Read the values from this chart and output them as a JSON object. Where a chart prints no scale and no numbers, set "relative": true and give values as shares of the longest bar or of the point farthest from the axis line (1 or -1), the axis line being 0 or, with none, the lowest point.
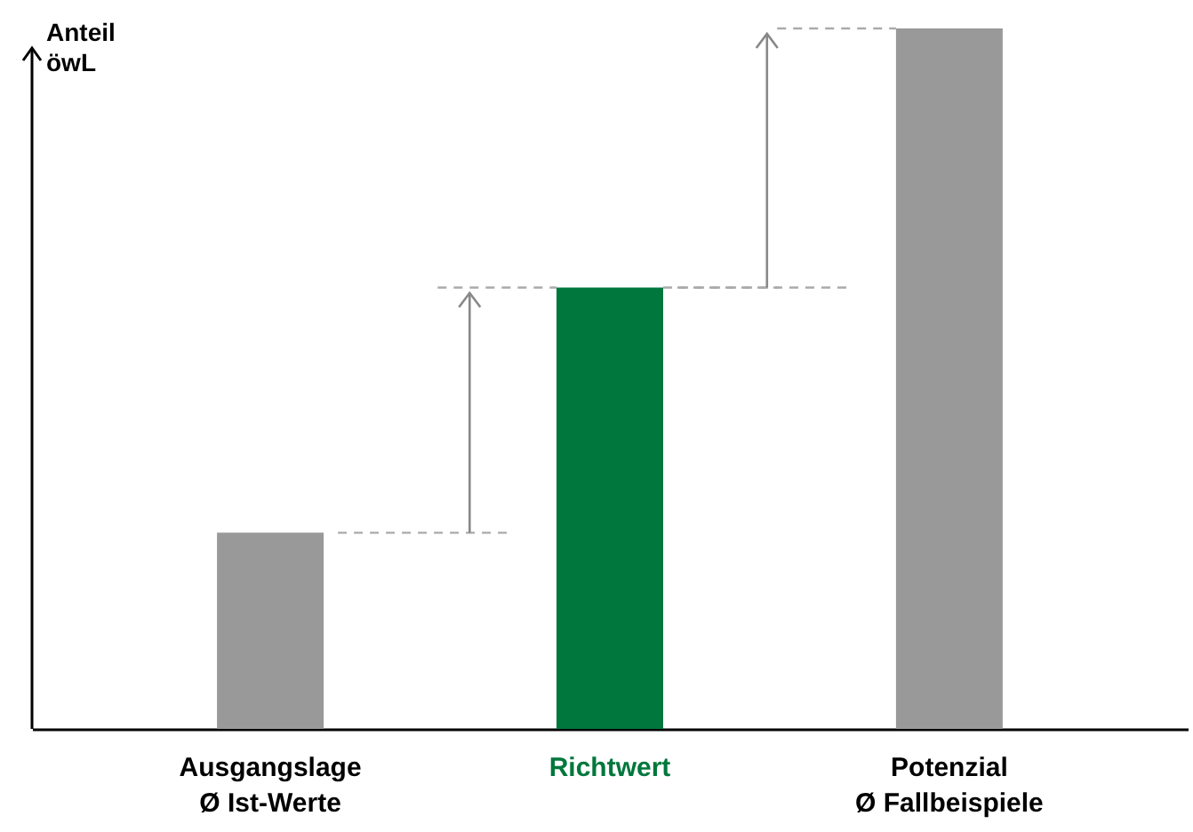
{
  "chart_data": {
    "type": "bar",
    "relative": true,
    "ylabel": "Anteil\nöwL",
    "categories": [
      "Ausgangslage\nØ Ist-Werte",
      "Richtwert",
      "Potenzial\nØ Fallbeispiele"
    ],
    "values": [
      0.28,
      0.63,
      1
    ],
    "colors": [
      "#999999",
      "#00773c",
      "#999999"
    ]
  }
}
